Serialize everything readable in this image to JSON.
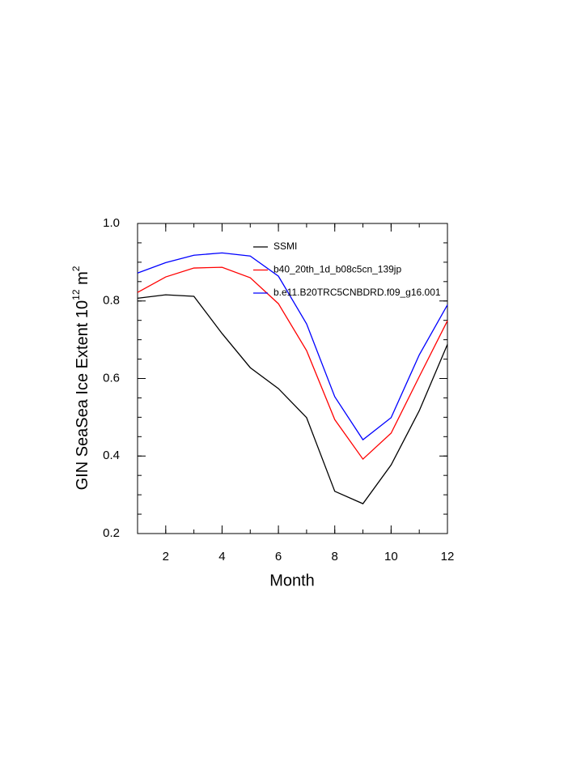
{
  "chart_data": {
    "type": "line",
    "x_label": "Month",
    "y_label": {
      "text": "GIN SeaSea Ice Extent 10",
      "exponent": "12",
      "unit": " m",
      "unit_exponent": "2"
    },
    "x": [
      1,
      2,
      3,
      4,
      5,
      6,
      7,
      8,
      9,
      10,
      11,
      12
    ],
    "series": [
      {
        "name": "SSMI",
        "color": "#000000",
        "values": [
          0.807,
          0.816,
          0.812,
          0.716,
          0.628,
          0.574,
          0.499,
          0.309,
          0.277,
          0.377,
          0.517,
          0.688
        ]
      },
      {
        "name": "b40_20th_1d_b08c5cn_139jp",
        "color": "#ff0000",
        "values": [
          0.822,
          0.862,
          0.885,
          0.887,
          0.86,
          0.793,
          0.672,
          0.494,
          0.392,
          0.459,
          0.605,
          0.749
        ]
      },
      {
        "name": "b.e11.B20TRC5CNBDRD.f09_g16.001",
        "color": "#0000ff",
        "values": [
          0.872,
          0.899,
          0.918,
          0.924,
          0.916,
          0.864,
          0.741,
          0.553,
          0.442,
          0.499,
          0.661,
          0.79
        ]
      }
    ],
    "xlim": [
      1,
      12
    ],
    "xticks": [
      2,
      4,
      6,
      8,
      10,
      12
    ],
    "ylim": [
      0.2,
      1.0
    ],
    "yticks": [
      0.2,
      0.4,
      0.6,
      0.8,
      {
        "value": 1.0,
        "label": "1.0"
      }
    ]
  }
}
